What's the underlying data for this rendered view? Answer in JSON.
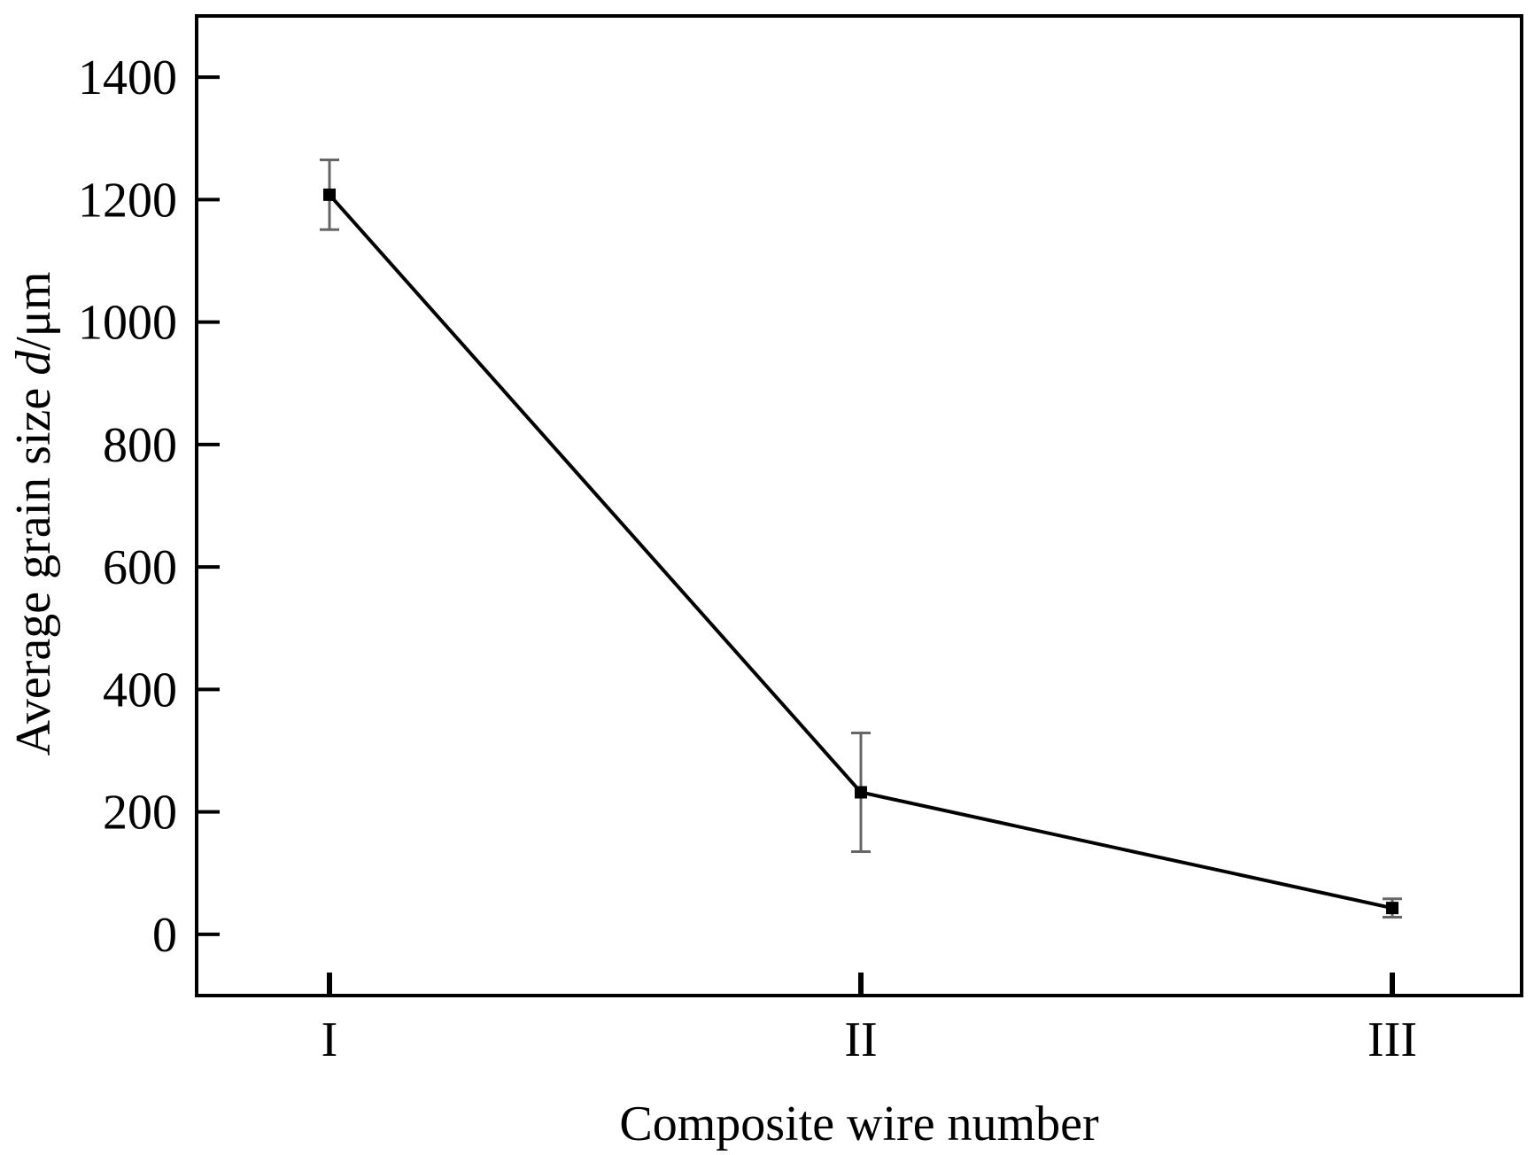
{
  "chart_data": {
    "type": "line",
    "categories": [
      "I",
      "II",
      "III"
    ],
    "series": [
      {
        "values": [
          1208,
          232,
          43
        ],
        "error": [
          57,
          97,
          15
        ]
      }
    ],
    "xlabel": "Composite wire number",
    "ylabel_main": "Average grain size ",
    "ylabel_symbol": "d",
    "ylabel_unit": "/μm",
    "ylim": [
      -100,
      1500
    ],
    "yticks": [
      0,
      200,
      400,
      600,
      800,
      1000,
      1200,
      1400
    ],
    "grid": false,
    "legend": "none",
    "line_color": "#000000",
    "errorbar_color": "#666666"
  }
}
